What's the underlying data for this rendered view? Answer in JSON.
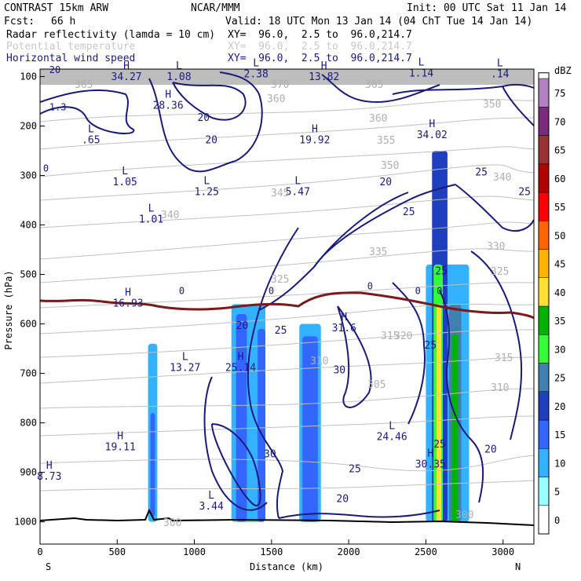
{
  "header": {
    "model": "CONTRAST 15km ARW",
    "center": "NCAR/MMM",
    "init": "Init: 00 UTC Sat 11 Jan 14",
    "fcst_label": "Fcst:",
    "fcst_value": "66 h",
    "valid": "Valid: 18 UTC Mon 13 Jan 14 (04 ChT Tue 14 Jan 14)",
    "fields": [
      {
        "name": "Radar reflectivity (lamda = 10 cm)",
        "xy": "XY=  96.0,  2.5 to  96.0,214.7",
        "color": "#000000"
      },
      {
        "name": "Potential temperature",
        "xy": "XY=  96.0,  2.5 to  96.0,214.7",
        "color": "#c8c8c8"
      },
      {
        "name": "Horizontal wind speed",
        "xy": "XY=  96.0,  2.5 to  96.0,214.7",
        "color": "#1a1a80"
      }
    ]
  },
  "chart_data": {
    "type": "cross-section",
    "title": "Radar reflectivity / Potential temperature / Horizontal wind speed",
    "xlabel": "Distance (km)",
    "ylabel": "Pressure (hPa)",
    "x_ticks": [
      0,
      500,
      1000,
      1500,
      2000,
      2500,
      3000
    ],
    "y_ticks": [
      100,
      200,
      300,
      400,
      500,
      600,
      700,
      800,
      900,
      1000
    ],
    "xlim": [
      0,
      3200
    ],
    "ylim": [
      1045,
      85
    ],
    "direction_left": "S",
    "direction_right": "N",
    "colorbar": {
      "unit": "dBZ",
      "ticks": [
        0,
        5,
        10,
        15,
        20,
        25,
        30,
        35,
        40,
        45,
        50,
        55,
        60,
        65,
        70,
        75
      ],
      "colors": [
        "#ffffff",
        "#99ffff",
        "#33b3ff",
        "#3366ff",
        "#1f3fbf",
        "#4080b0",
        "#33ff33",
        "#00b300",
        "#ffe033",
        "#ffb300",
        "#ff6600",
        "#ff0000",
        "#b30000",
        "#993333",
        "#7a2b7a",
        "#b080c0"
      ]
    },
    "reflectivity_cells": [
      {
        "x0": 700,
        "x1": 760,
        "p_top": 640,
        "p_bot": 1000,
        "dbz": 10
      },
      {
        "x0": 715,
        "x1": 745,
        "p_top": 780,
        "p_bot": 990,
        "dbz": 15
      },
      {
        "x0": 1240,
        "x1": 1460,
        "p_top": 560,
        "p_bot": 1000,
        "dbz": 10
      },
      {
        "x0": 1270,
        "x1": 1340,
        "p_top": 580,
        "p_bot": 1000,
        "dbz": 15
      },
      {
        "x0": 1410,
        "x1": 1460,
        "p_top": 610,
        "p_bot": 1000,
        "dbz": 15
      },
      {
        "x0": 1680,
        "x1": 1820,
        "p_top": 600,
        "p_bot": 1000,
        "dbz": 10
      },
      {
        "x0": 1700,
        "x1": 1800,
        "p_top": 625,
        "p_bot": 1000,
        "dbz": 15
      },
      {
        "x0": 2500,
        "x1": 2780,
        "p_top": 480,
        "p_bot": 1000,
        "dbz": 10
      },
      {
        "x0": 2540,
        "x1": 2640,
        "p_top": 250,
        "p_bot": 1000,
        "dbz": 20
      },
      {
        "x0": 2550,
        "x1": 2610,
        "p_top": 480,
        "p_bot": 1000,
        "dbz": 30
      },
      {
        "x0": 2570,
        "x1": 2600,
        "p_top": 560,
        "p_bot": 1000,
        "dbz": 40
      },
      {
        "x0": 2650,
        "x1": 2730,
        "p_top": 560,
        "p_bot": 1000,
        "dbz": 25
      },
      {
        "x0": 2670,
        "x1": 2710,
        "p_top": 620,
        "p_bot": 1000,
        "dbz": 35
      }
    ],
    "wind_contour_labels": [
      {
        "x": 1270,
        "p": 610,
        "text": "20"
      },
      {
        "x": 1520,
        "p": 620,
        "text": "25"
      },
      {
        "x": 1900,
        "p": 700,
        "text": "30"
      },
      {
        "x": 2490,
        "p": 650,
        "text": "25"
      },
      {
        "x": 2560,
        "p": 500,
        "text": "25"
      },
      {
        "x": 2200,
        "p": 320,
        "text": "20"
      },
      {
        "x": 2350,
        "p": 380,
        "text": "25"
      },
      {
        "x": 2820,
        "p": 300,
        "text": "25"
      },
      {
        "x": 2550,
        "p": 850,
        "text": "25"
      },
      {
        "x": 2000,
        "p": 900,
        "text": "25"
      },
      {
        "x": 1920,
        "p": 960,
        "text": "20"
      },
      {
        "x": 1450,
        "p": 870,
        "text": "30"
      },
      {
        "x": 2880,
        "p": 860,
        "text": "20"
      },
      {
        "x": 1020,
        "p": 190,
        "text": "20"
      },
      {
        "x": 1070,
        "p": 235,
        "text": "20"
      },
      {
        "x": 3100,
        "p": 340,
        "text": "25"
      }
    ],
    "theta_contour_labels": [
      "365",
      "370",
      "365",
      "360",
      "360",
      "355",
      "350",
      "345",
      "340",
      "335",
      "325",
      "320",
      "315",
      "310",
      "305",
      "300",
      "350",
      "340",
      "330",
      "325",
      "315",
      "310",
      "300"
    ],
    "extrema_labels": [
      {
        "kind": "H",
        "value": "34.27",
        "x": 560,
        "p": 107
      },
      {
        "kind": "L",
        "value": "1.08",
        "x": 900,
        "p": 107
      },
      {
        "kind": "L",
        "value": "2.38",
        "x": 1400,
        "p": 102
      },
      {
        "kind": "H",
        "value": "13.82",
        "x": 1840,
        "p": 107
      },
      {
        "kind": "L",
        "value": "1.14",
        "x": 2470,
        "p": 100
      },
      {
        "kind": "L",
        "value": ".14",
        "x": 2980,
        "p": 102
      },
      {
        "kind": "H",
        "value": "28.36",
        "x": 830,
        "p": 165
      },
      {
        "kind": "L",
        "value": ".65",
        "x": 330,
        "p": 235
      },
      {
        "kind": "H",
        "value": "19.92",
        "x": 1780,
        "p": 235
      },
      {
        "kind": "H",
        "value": "34.02",
        "x": 2540,
        "p": 225
      },
      {
        "kind": "L",
        "value": "1.05",
        "x": 550,
        "p": 320
      },
      {
        "kind": "L",
        "value": "1.25",
        "x": 1080,
        "p": 340
      },
      {
        "kind": "L",
        "value": "5.47",
        "x": 1670,
        "p": 340
      },
      {
        "kind": "L",
        "value": "1.01",
        "x": 720,
        "p": 395
      },
      {
        "kind": "H",
        "value": "16.93",
        "x": 570,
        "p": 565
      },
      {
        "kind": "H",
        "value": "31.6",
        "x": 1970,
        "p": 615
      },
      {
        "kind": "L",
        "value": "13.27",
        "x": 940,
        "p": 695
      },
      {
        "kind": "H",
        "value": "25.14",
        "x": 1300,
        "p": 695
      },
      {
        "kind": "L",
        "value": "24.46",
        "x": 2280,
        "p": 835
      },
      {
        "kind": "H",
        "value": "19.11",
        "x": 520,
        "p": 855
      },
      {
        "kind": "H",
        "value": "30.35",
        "x": 2530,
        "p": 890
      },
      {
        "kind": "H",
        "value": "8.73",
        "x": 60,
        "p": 915
      },
      {
        "kind": "L",
        "value": "3.44",
        "x": 1110,
        "p": 975
      }
    ],
    "edge_labels": [
      {
        "text": "20",
        "x": 60,
        "p": 93
      },
      {
        "text": "1.3",
        "x": 60,
        "p": 168
      },
      {
        "text": "0",
        "x": 20,
        "p": 292
      },
      {
        "text": "0",
        "x": 900,
        "p": 540
      },
      {
        "text": "0",
        "x": 1480,
        "p": 540
      },
      {
        "text": "0",
        "x": 2120,
        "p": 530
      },
      {
        "text": "0",
        "x": 2430,
        "p": 540
      },
      {
        "text": "0",
        "x": 2570,
        "p": 540
      }
    ],
    "zero_isotherm_hpa_approx": 555
  }
}
